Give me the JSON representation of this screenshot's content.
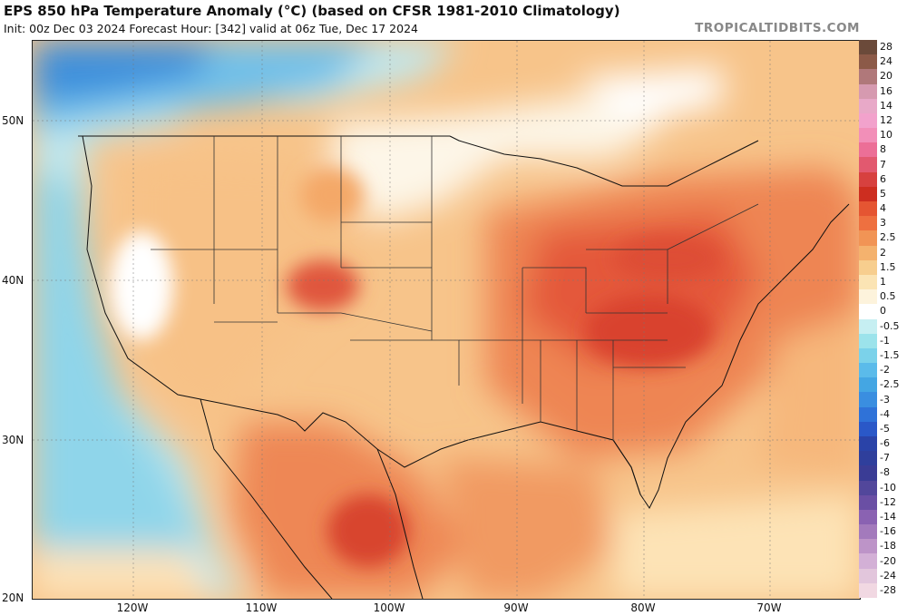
{
  "header": {
    "title": "EPS 850 hPa Temperature Anomaly (°C) (based on CFSR 1981-2010 Climatology)",
    "subtitle": "Init: 00z Dec 03 2024   Forecast Hour: [342]   valid at 06z Tue, Dec 17 2024",
    "brand": "TROPICALTIDBITS.COM"
  },
  "axes": {
    "lat_labels": [
      "50N",
      "40N",
      "30N",
      "20N"
    ],
    "lon_labels": [
      "120W",
      "110W",
      "100W",
      "90W",
      "80W",
      "70W"
    ]
  },
  "colorbar": {
    "labels": [
      "28",
      "24",
      "20",
      "16",
      "14",
      "12",
      "10",
      "8",
      "7",
      "6",
      "5",
      "4",
      "3",
      "2.5",
      "2",
      "1.5",
      "1",
      "0.5",
      "0",
      "-0.5",
      "-1",
      "-1.5",
      "-2",
      "-2.5",
      "-3",
      "-4",
      "-5",
      "-6",
      "-7",
      "-8",
      "-10",
      "-12",
      "-14",
      "-16",
      "-18",
      "-20",
      "-24",
      "-28"
    ],
    "colors": [
      "#6b4a3a",
      "#8c5a48",
      "#b0787a",
      "#d69ab0",
      "#e8a9c8",
      "#f2a2cc",
      "#f28fb8",
      "#ec6f97",
      "#e2596f",
      "#d7413f",
      "#cd2e20",
      "#e55532",
      "#ee7040",
      "#f19455",
      "#f4b26e",
      "#f7ce8e",
      "#fbe4b4",
      "#fdf3dc",
      "#ffffff",
      "#c6eff2",
      "#9ce3eb",
      "#7bd2ea",
      "#5bbbea",
      "#44a6e3",
      "#3a8ee0",
      "#2f72d8",
      "#2a58c8",
      "#2a43a8",
      "#2f3f9c",
      "#3a3c95",
      "#52479b",
      "#6a4fa4",
      "#8a62b2",
      "#a37abc",
      "#bd94c8",
      "#d3b0d6",
      "#e2c6dc",
      "#f1d8e2"
    ]
  }
}
